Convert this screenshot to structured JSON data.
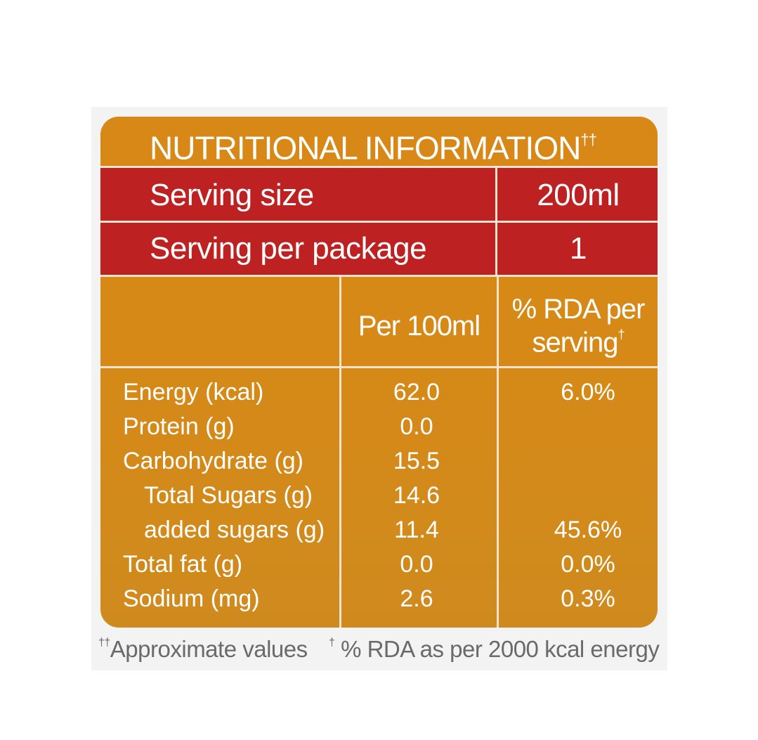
{
  "title": {
    "text": "NUTRITIONAL INFORMATION",
    "mark": "††"
  },
  "serving": {
    "size_label": "Serving size",
    "size_value": "200ml",
    "package_label": "Serving per package",
    "package_value": "1"
  },
  "columns": {
    "per100": "Per 100ml",
    "rda_line1": "% RDA per",
    "rda_line2": "serving",
    "rda_mark": "†"
  },
  "nutrients": [
    {
      "name": "Energy (kcal)",
      "per100": "62.0",
      "rda": "6.0%"
    },
    {
      "name": "Protein (g)",
      "per100": "0.0",
      "rda": ""
    },
    {
      "name": "Carbohydrate (g)",
      "per100": "15.5",
      "rda": ""
    },
    {
      "name": "Total Sugars (g)",
      "per100": "14.6",
      "rda": ""
    },
    {
      "name": "added sugars (g)",
      "per100": "11.4",
      "rda": "45.6%"
    },
    {
      "name": "Total fat (g)",
      "per100": "0.0",
      "rda": "0.0%"
    },
    {
      "name": "Sodium (mg)",
      "per100": "2.6",
      "rda": "0.3%"
    }
  ],
  "footnotes": {
    "approx_mark": "††",
    "approx_text": "Approximate values",
    "rda_mark": "†",
    "rda_text": " % RDA as per 2000 kcal energy"
  },
  "colors": {
    "orange": "#d88817",
    "red": "#be2121",
    "line": "#f6e4cf"
  }
}
